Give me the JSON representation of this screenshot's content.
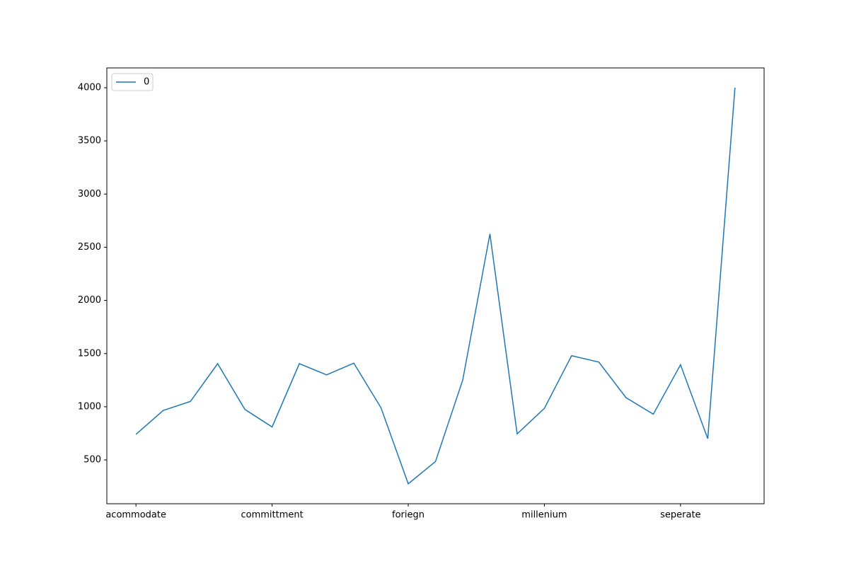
{
  "chart_data": {
    "type": "line",
    "categories": [
      "acommodate",
      null,
      null,
      null,
      null,
      "committment",
      null,
      null,
      null,
      null,
      "foriegn",
      null,
      null,
      null,
      null,
      "millenium",
      null,
      null,
      null,
      null,
      "seperate",
      null,
      null
    ],
    "series": [
      {
        "name": "0",
        "color": "#1f77b4",
        "values": [
          740,
          965,
          1050,
          1405,
          975,
          810,
          1405,
          1300,
          1410,
          990,
          275,
          485,
          1250,
          2625,
          745,
          985,
          1480,
          1420,
          1085,
          930,
          1395,
          700,
          4000
        ]
      }
    ],
    "ylim": [
      88,
      4186
    ],
    "yticks": [
      500,
      1000,
      1500,
      2000,
      2500,
      3000,
      3500,
      4000
    ],
    "legend": "upper left"
  }
}
